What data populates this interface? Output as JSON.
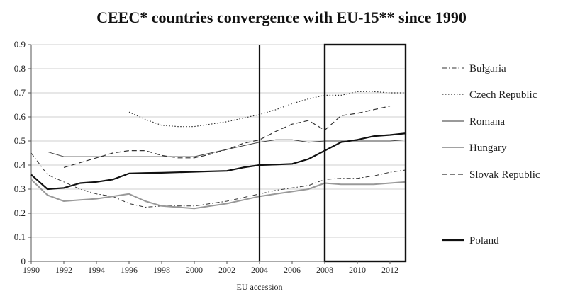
{
  "title": "CEEC* countries convergence with EU-15** since 1990",
  "chart_data": {
    "type": "line",
    "title": "CEEC* countries convergence with EU-15** since 1990",
    "xlabel": "EU accession",
    "ylabel": "",
    "xlim": [
      1990,
      2013
    ],
    "ylim": [
      0,
      0.9
    ],
    "x_ticks": [
      1990,
      1992,
      1994,
      1996,
      1998,
      2000,
      2002,
      2004,
      2006,
      2008,
      2010,
      2012
    ],
    "y_ticks": [
      0,
      0.1,
      0.2,
      0.3,
      0.4,
      0.5,
      0.6,
      0.7,
      0.8,
      0.9
    ],
    "grid": "horizontal",
    "legend_position": "right",
    "markers": [
      {
        "type": "vertical-line",
        "x": 2004
      },
      {
        "type": "box",
        "x_range": [
          2008,
          2013
        ]
      }
    ],
    "series": [
      {
        "name": "Bułgaria",
        "style": "dash-dot",
        "color": "#333333",
        "width": 1,
        "points": [
          [
            1990,
            0.45
          ],
          [
            1991,
            0.36
          ],
          [
            1992,
            0.33
          ],
          [
            1993,
            0.3
          ],
          [
            1994,
            0.28
          ],
          [
            1995,
            0.27
          ],
          [
            1996,
            0.24
          ],
          [
            1997,
            0.225
          ],
          [
            1998,
            0.23
          ],
          [
            1999,
            0.23
          ],
          [
            2000,
            0.23
          ],
          [
            2001,
            0.24
          ],
          [
            2002,
            0.25
          ],
          [
            2003,
            0.265
          ],
          [
            2004,
            0.28
          ],
          [
            2005,
            0.295
          ],
          [
            2006,
            0.305
          ],
          [
            2007,
            0.315
          ],
          [
            2008,
            0.34
          ],
          [
            2009,
            0.345
          ],
          [
            2010,
            0.345
          ],
          [
            2011,
            0.355
          ],
          [
            2012,
            0.37
          ],
          [
            2013,
            0.38
          ]
        ]
      },
      {
        "name": "Czech Republic",
        "style": "dotted",
        "color": "#333333",
        "width": 1.2,
        "points": [
          [
            1996,
            0.62
          ],
          [
            1997,
            0.59
          ],
          [
            1998,
            0.565
          ],
          [
            1999,
            0.56
          ],
          [
            2000,
            0.56
          ],
          [
            2001,
            0.57
          ],
          [
            2002,
            0.58
          ],
          [
            2003,
            0.595
          ],
          [
            2004,
            0.61
          ],
          [
            2005,
            0.63
          ],
          [
            2006,
            0.655
          ],
          [
            2007,
            0.675
          ],
          [
            2008,
            0.69
          ],
          [
            2009,
            0.69
          ],
          [
            2010,
            0.705
          ],
          [
            2011,
            0.705
          ],
          [
            2012,
            0.7
          ],
          [
            2013,
            0.7
          ]
        ]
      },
      {
        "name": "Romana",
        "style": "solid",
        "color": "#999999",
        "width": 2,
        "points": [
          [
            1990,
            0.34
          ],
          [
            1991,
            0.275
          ],
          [
            1992,
            0.25
          ],
          [
            1993,
            0.255
          ],
          [
            1994,
            0.26
          ],
          [
            1995,
            0.27
          ],
          [
            1996,
            0.28
          ],
          [
            1997,
            0.25
          ],
          [
            1998,
            0.23
          ],
          [
            1999,
            0.225
          ],
          [
            2000,
            0.22
          ],
          [
            2001,
            0.23
          ],
          [
            2002,
            0.24
          ],
          [
            2003,
            0.255
          ],
          [
            2004,
            0.27
          ],
          [
            2005,
            0.28
          ],
          [
            2006,
            0.29
          ],
          [
            2007,
            0.3
          ],
          [
            2008,
            0.325
          ],
          [
            2009,
            0.32
          ],
          [
            2010,
            0.32
          ],
          [
            2011,
            0.32
          ],
          [
            2012,
            0.325
          ],
          [
            2013,
            0.33
          ]
        ]
      },
      {
        "name": "Hungary",
        "style": "solid",
        "color": "#444444",
        "width": 1,
        "points": [
          [
            1991,
            0.455
          ],
          [
            1992,
            0.435
          ],
          [
            1993,
            0.435
          ],
          [
            1994,
            0.435
          ],
          [
            1995,
            0.435
          ],
          [
            1996,
            0.435
          ],
          [
            1997,
            0.435
          ],
          [
            1998,
            0.435
          ],
          [
            1999,
            0.435
          ],
          [
            2000,
            0.435
          ],
          [
            2001,
            0.45
          ],
          [
            2002,
            0.465
          ],
          [
            2003,
            0.48
          ],
          [
            2004,
            0.495
          ],
          [
            2005,
            0.505
          ],
          [
            2006,
            0.505
          ],
          [
            2007,
            0.495
          ],
          [
            2008,
            0.5
          ],
          [
            2009,
            0.5
          ],
          [
            2010,
            0.5
          ],
          [
            2011,
            0.5
          ],
          [
            2012,
            0.5
          ],
          [
            2013,
            0.505
          ]
        ]
      },
      {
        "name": "Slovak Republic",
        "style": "dashed",
        "color": "#333333",
        "width": 1.2,
        "points": [
          [
            1992,
            0.39
          ],
          [
            1993,
            0.41
          ],
          [
            1994,
            0.43
          ],
          [
            1995,
            0.45
          ],
          [
            1996,
            0.46
          ],
          [
            1997,
            0.46
          ],
          [
            1998,
            0.44
          ],
          [
            1999,
            0.43
          ],
          [
            2000,
            0.43
          ],
          [
            2001,
            0.445
          ],
          [
            2002,
            0.465
          ],
          [
            2003,
            0.49
          ],
          [
            2004,
            0.505
          ],
          [
            2005,
            0.54
          ],
          [
            2006,
            0.57
          ],
          [
            2007,
            0.585
          ],
          [
            2008,
            0.545
          ],
          [
            2009,
            0.605
          ],
          [
            2010,
            0.615
          ],
          [
            2011,
            0.63
          ],
          [
            2012,
            0.645
          ]
        ]
      },
      {
        "name": "Poland",
        "style": "solid",
        "color": "#111111",
        "width": 2.2,
        "points": [
          [
            1990,
            0.36
          ],
          [
            1991,
            0.3
          ],
          [
            1992,
            0.305
          ],
          [
            1993,
            0.325
          ],
          [
            1994,
            0.33
          ],
          [
            1995,
            0.34
          ],
          [
            1996,
            0.365
          ],
          [
            1997,
            0.367
          ],
          [
            1998,
            0.368
          ],
          [
            1999,
            0.37
          ],
          [
            2000,
            0.372
          ],
          [
            2001,
            0.374
          ],
          [
            2002,
            0.376
          ],
          [
            2003,
            0.39
          ],
          [
            2004,
            0.4
          ],
          [
            2005,
            0.402
          ],
          [
            2006,
            0.405
          ],
          [
            2007,
            0.425
          ],
          [
            2008,
            0.46
          ],
          [
            2009,
            0.495
          ],
          [
            2010,
            0.505
          ],
          [
            2011,
            0.52
          ],
          [
            2012,
            0.525
          ],
          [
            2013,
            0.532
          ]
        ]
      }
    ]
  }
}
